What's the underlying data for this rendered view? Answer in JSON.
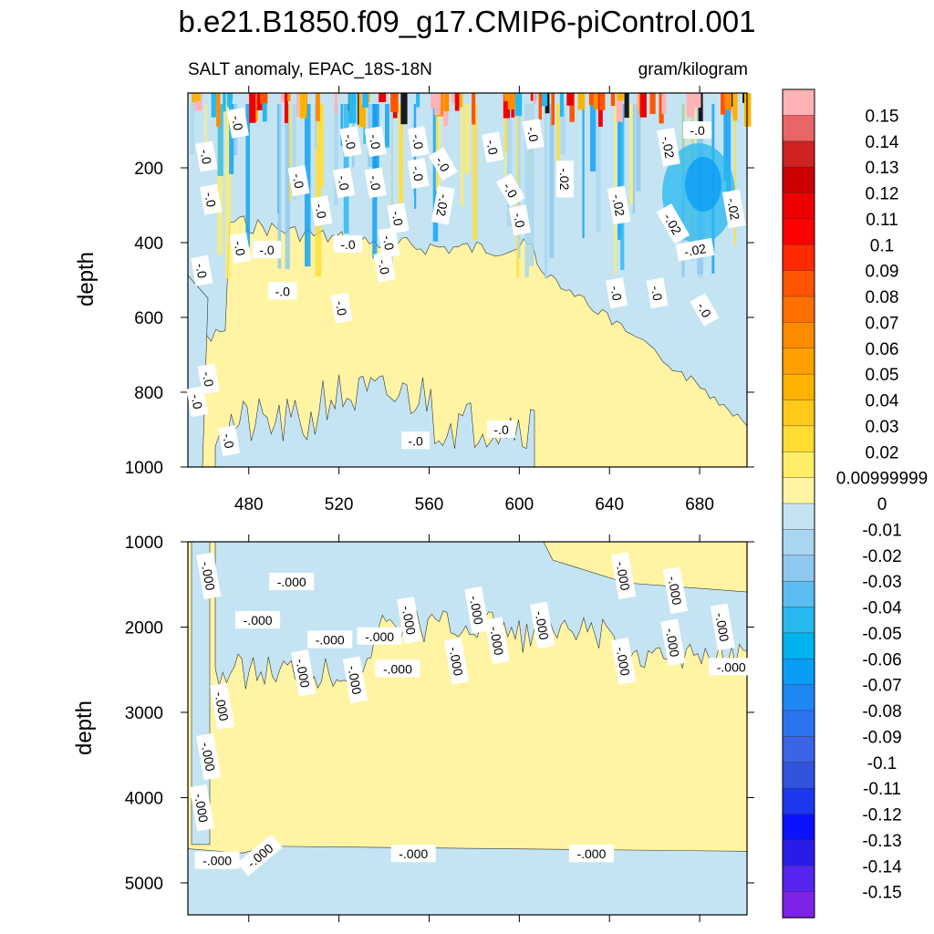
{
  "title": "b.e21.B1850.f09_g17.CMIP6-piControl.001",
  "subtitle_left": "SALT anomaly, EPAC_18S-18N",
  "subtitle_right": "gram/kilogram",
  "chart_data": [
    {
      "type": "heatmap",
      "panel": "upper",
      "ylabel": "depth",
      "xlim": [
        453,
        701
      ],
      "ylim": [
        1000,
        0
      ],
      "x_ticks": [
        480,
        520,
        560,
        600,
        640,
        680
      ],
      "y_ticks": [
        200,
        400,
        600,
        800,
        1000
      ],
      "contour_labels": [
        {
          "text": "-.0",
          "x": 475,
          "y": 80,
          "rot": 80
        },
        {
          "text": "-.0",
          "x": 461,
          "y": 170,
          "rot": 80
        },
        {
          "text": "-.0",
          "x": 463,
          "y": 285,
          "rot": 80
        },
        {
          "text": "-.0",
          "x": 476,
          "y": 415,
          "rot": 80
        },
        {
          "text": "-.0",
          "x": 459,
          "y": 475,
          "rot": 80
        },
        {
          "text": "-.0",
          "x": 525,
          "y": 130,
          "rot": 80
        },
        {
          "text": "-.0",
          "x": 502,
          "y": 235,
          "rot": 80
        },
        {
          "text": "-.0",
          "x": 536,
          "y": 130,
          "rot": 80
        },
        {
          "text": "-.0",
          "x": 522,
          "y": 240,
          "rot": 80
        },
        {
          "text": "-.0",
          "x": 536,
          "y": 240,
          "rot": 80
        },
        {
          "text": "-.0",
          "x": 512,
          "y": 315,
          "rot": 80
        },
        {
          "text": "-.0",
          "x": 488,
          "y": 420,
          "rot": 0
        },
        {
          "text": "-.0",
          "x": 524,
          "y": 405,
          "rot": 0
        },
        {
          "text": "-.0",
          "x": 540,
          "y": 465,
          "rot": 80
        },
        {
          "text": "-.0",
          "x": 555,
          "y": 130,
          "rot": 80
        },
        {
          "text": "-.0",
          "x": 555,
          "y": 215,
          "rot": 80
        },
        {
          "text": "-.0",
          "x": 546,
          "y": 335,
          "rot": 80
        },
        {
          "text": "-.0",
          "x": 542,
          "y": 400,
          "rot": 80
        },
        {
          "text": "-.0",
          "x": 566,
          "y": 190,
          "rot": 60
        },
        {
          "text": "-.0",
          "x": 588,
          "y": 145,
          "rot": 80
        },
        {
          "text": "-.0",
          "x": 596,
          "y": 260,
          "rot": 60
        },
        {
          "text": "-.0",
          "x": 600,
          "y": 340,
          "rot": 80
        },
        {
          "text": "-.0",
          "x": 606,
          "y": 110,
          "rot": 80
        },
        {
          "text": "-.02",
          "x": 566,
          "y": 300,
          "rot": 100
        },
        {
          "text": "-.02",
          "x": 620,
          "y": 230,
          "rot": 90
        },
        {
          "text": "-.02",
          "x": 644,
          "y": 300,
          "rot": 80
        },
        {
          "text": "-.02",
          "x": 666,
          "y": 145,
          "rot": 80
        },
        {
          "text": "-.0",
          "x": 679,
          "y": 100,
          "rot": 0
        },
        {
          "text": "-.02",
          "x": 668,
          "y": 350,
          "rot": 60
        },
        {
          "text": "-.02",
          "x": 695,
          "y": 310,
          "rot": 80
        },
        {
          "text": "-.02",
          "x": 678,
          "y": 420,
          "rot": -10
        },
        {
          "text": "-.0",
          "x": 643,
          "y": 535,
          "rot": 80
        },
        {
          "text": "-.0",
          "x": 661,
          "y": 535,
          "rot": 80
        },
        {
          "text": "-.0",
          "x": 682,
          "y": 580,
          "rot": 60
        },
        {
          "text": "-.0",
          "x": 495,
          "y": 530,
          "rot": 0
        },
        {
          "text": "-.0",
          "x": 521,
          "y": 575,
          "rot": 80
        },
        {
          "text": "-.0",
          "x": 462,
          "y": 765,
          "rot": 80
        },
        {
          "text": "-.0",
          "x": 457,
          "y": 825,
          "rot": 80
        },
        {
          "text": "-.0",
          "x": 471,
          "y": 930,
          "rot": 80
        },
        {
          "text": "-.0",
          "x": 554,
          "y": 930,
          "rot": 0
        },
        {
          "text": "-.0",
          "x": 592,
          "y": 900,
          "rot": 0
        }
      ]
    },
    {
      "type": "heatmap",
      "panel": "lower",
      "ylabel": "depth",
      "xlim": [
        453,
        701
      ],
      "ylim": [
        5375,
        1000
      ],
      "y_ticks": [
        1000,
        2000,
        3000,
        4000,
        5000
      ],
      "contour_labels": [
        {
          "text": "-.000",
          "x": 462,
          "y": 1400,
          "rot": 80
        },
        {
          "text": "-.000",
          "x": 499,
          "y": 1470,
          "rot": 0
        },
        {
          "text": "-.000",
          "x": 484,
          "y": 1920,
          "rot": 0
        },
        {
          "text": "-.000",
          "x": 504,
          "y": 2540,
          "rot": 80
        },
        {
          "text": "-.000",
          "x": 468,
          "y": 2930,
          "rot": 80
        },
        {
          "text": "-.000",
          "x": 462,
          "y": 3520,
          "rot": 80
        },
        {
          "text": "-.000",
          "x": 459,
          "y": 4120,
          "rot": 80
        },
        {
          "text": "-.000",
          "x": 466,
          "y": 4740,
          "rot": 0
        },
        {
          "text": "-.000",
          "x": 516,
          "y": 2150,
          "rot": 0
        },
        {
          "text": "-.000",
          "x": 527,
          "y": 2620,
          "rot": 80
        },
        {
          "text": "-.000",
          "x": 538,
          "y": 2110,
          "rot": 0
        },
        {
          "text": "-.000",
          "x": 546,
          "y": 2490,
          "rot": 0
        },
        {
          "text": "-.000",
          "x": 551,
          "y": 1920,
          "rot": 80
        },
        {
          "text": "-.000",
          "x": 581,
          "y": 1800,
          "rot": 80
        },
        {
          "text": "-.000",
          "x": 572,
          "y": 2400,
          "rot": 80
        },
        {
          "text": "-.000",
          "x": 590,
          "y": 2160,
          "rot": 80
        },
        {
          "text": "-.000",
          "x": 610,
          "y": 1980,
          "rot": 80
        },
        {
          "text": "-.000",
          "x": 646,
          "y": 1400,
          "rot": 80
        },
        {
          "text": "-.000",
          "x": 669,
          "y": 1570,
          "rot": 80
        },
        {
          "text": "-.000",
          "x": 646,
          "y": 2400,
          "rot": 80
        },
        {
          "text": "-.000",
          "x": 668,
          "y": 2180,
          "rot": 80
        },
        {
          "text": "-.000",
          "x": 690,
          "y": 2000,
          "rot": 80
        },
        {
          "text": "-.000",
          "x": 694,
          "y": 2470,
          "rot": 0
        },
        {
          "text": "-.000",
          "x": 485,
          "y": 4680,
          "rot": -40
        },
        {
          "text": "-.000",
          "x": 553,
          "y": 4660,
          "rot": 0
        },
        {
          "text": "-.000",
          "x": 632,
          "y": 4660,
          "rot": 0
        }
      ]
    }
  ],
  "colorbar": {
    "labels": [
      "0.15",
      "0.14",
      "0.13",
      "0.12",
      "0.11",
      "0.1",
      "0.09",
      "0.08",
      "0.07",
      "0.06",
      "0.05",
      "0.04",
      "0.03",
      "0.02",
      "0.00999999",
      "0",
      "-0.01",
      "-0.02",
      "-0.03",
      "-0.04",
      "-0.05",
      "-0.06",
      "-0.07",
      "-0.08",
      "-0.09",
      "-0.1",
      "-0.11",
      "-0.12",
      "-0.13",
      "-0.14",
      "-0.15"
    ],
    "colors": [
      "#ffb3b6",
      "#ea6565",
      "#cf2222",
      "#cc0000",
      "#ee0000",
      "#ff0000",
      "#ff2a00",
      "#ff5500",
      "#ff6f00",
      "#ff8c00",
      "#ff9f00",
      "#ffb300",
      "#ffc91a",
      "#ffdd33",
      "#ffee66",
      "#fff4a3",
      "#c5e4f3",
      "#a8d6f0",
      "#8fc8ef",
      "#5bbdf0",
      "#27b8ef",
      "#00b2ee",
      "#0a9df5",
      "#1e86f5",
      "#2b74ef",
      "#3b64e6",
      "#3153de",
      "#1d37ee",
      "#0a12ff",
      "#2a1ce8",
      "#5524ee",
      "#7f22e8"
    ]
  }
}
